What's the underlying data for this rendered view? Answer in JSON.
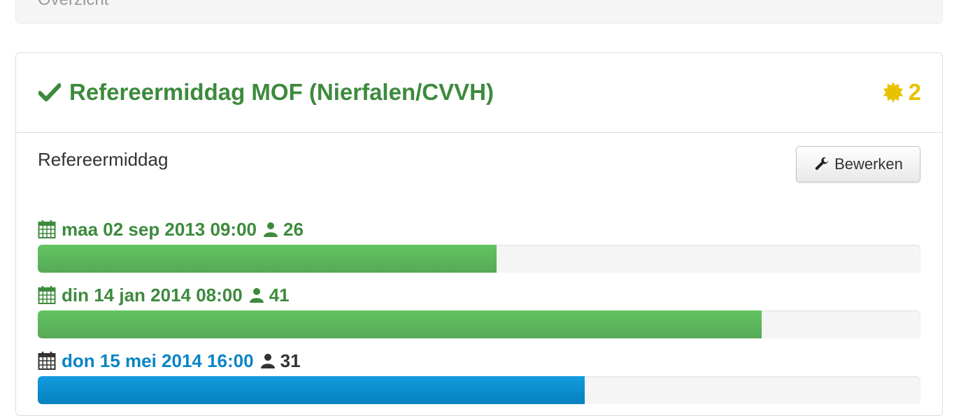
{
  "breadcrumb": {
    "label": "Overzicht"
  },
  "event": {
    "title": "Refereermiddag MOF (Nierfalen/CVVH)",
    "star_count": "2",
    "type": "Refereermiddag",
    "edit_label": "Bewerken"
  },
  "colors": {
    "past_green": "#3d8a3d",
    "upcoming_blue": "#0a84c6",
    "star_yellow": "#e8c200"
  },
  "sessions": [
    {
      "date": "maa 02 sep 2013 09:00",
      "count": "26",
      "fill_fraction": 0.52,
      "state": "past"
    },
    {
      "date": "din 14 jan 2014 08:00",
      "count": "41",
      "fill_fraction": 0.82,
      "state": "past"
    },
    {
      "date": "don 15 mei 2014 16:00",
      "count": "31",
      "fill_fraction": 0.62,
      "state": "upcoming"
    }
  ]
}
